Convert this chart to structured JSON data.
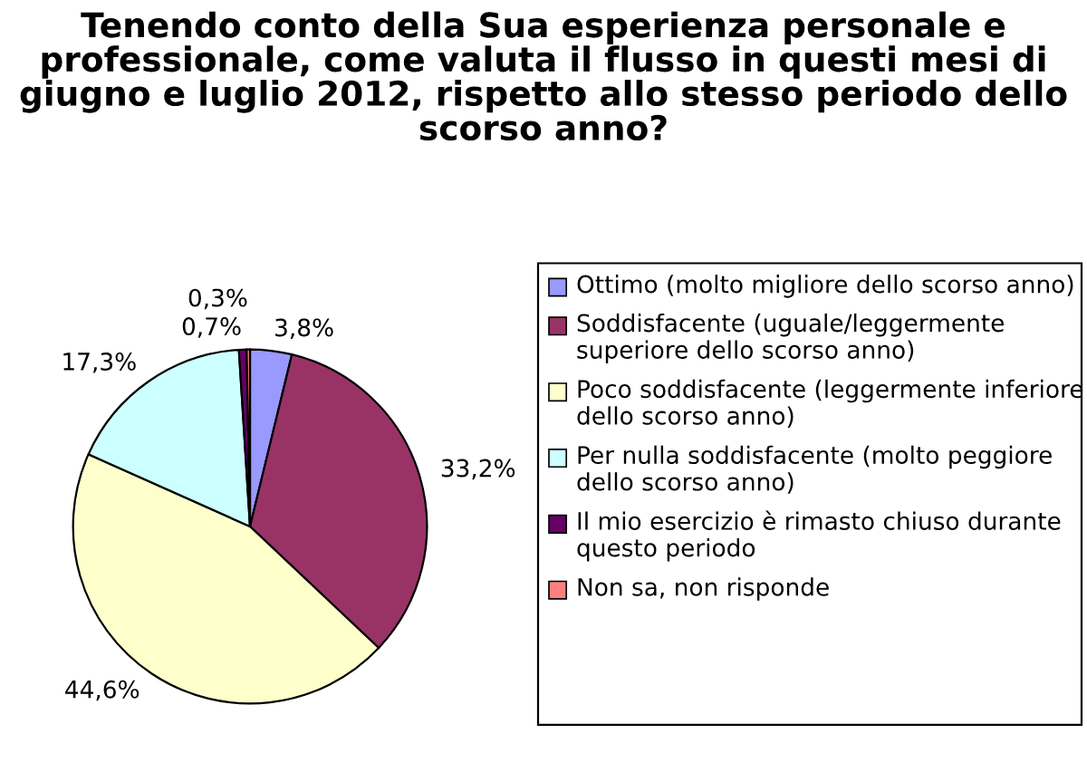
{
  "chart_data": {
    "type": "pie",
    "title": "Tenendo conto della Sua esperienza personale e professionale, come valuta il flusso in questi mesi di giugno e luglio 2012, rispetto allo stesso periodo dello scorso anno?",
    "categories": [
      "Ottimo (molto migliore dello scorso anno)",
      "Soddisfacente (uguale/leggermente superiore dello scorso anno)",
      "Poco soddisfacente (leggermente inferiore dello scorso anno)",
      "Per nulla soddisfacente (molto peggiore dello scorso anno)",
      "Il mio esercizio è rimasto chiuso durante questo periodo",
      "Non sa, non risponde"
    ],
    "values": [
      3.8,
      33.2,
      44.6,
      17.3,
      0.7,
      0.3
    ],
    "value_labels": [
      "3,8%",
      "33,2%",
      "44,6%",
      "17,3%",
      "0,7%",
      "0,3%"
    ],
    "colors": [
      "#9999ff",
      "#993366",
      "#ffffcc",
      "#ccffff",
      "#660066",
      "#ff8080"
    ],
    "legend": "right"
  }
}
